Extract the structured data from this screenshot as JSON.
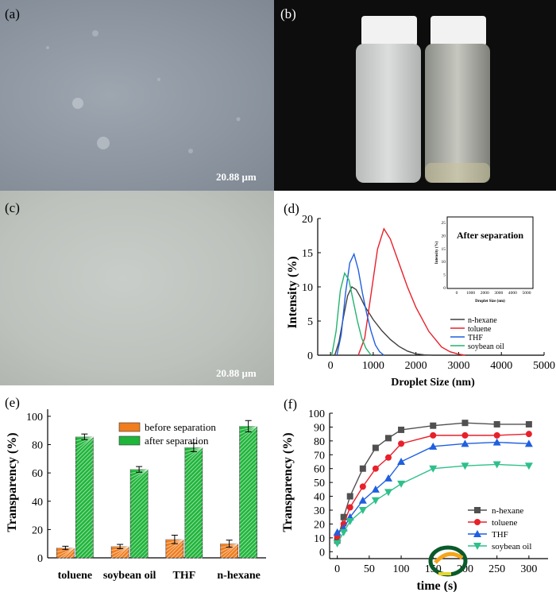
{
  "panels": {
    "a": {
      "label": "(a)",
      "scale_bar": "20.88 μm"
    },
    "b": {
      "label": "(b)"
    },
    "c": {
      "label": "(c)",
      "scale_bar": "20.88 μm"
    },
    "d": {
      "label": "(d)"
    },
    "e": {
      "label": "(e)"
    },
    "f": {
      "label": "(f)"
    }
  },
  "chart_data": [
    {
      "id": "d",
      "type": "line",
      "xlabel": "Droplet Size (nm)",
      "ylabel": "Intensity (%)",
      "xlim": [
        -300,
        5000
      ],
      "ylim": [
        0,
        20
      ],
      "xticks": [
        0,
        1000,
        2000,
        3000,
        4000,
        5000
      ],
      "yticks": [
        0,
        5,
        10,
        15,
        20
      ],
      "legend_position": "bottom-right",
      "colors": {
        "n-hexane": "#404040",
        "toluene": "#e8202a",
        "THF": "#1f5fe0",
        "soybean oil": "#22b46e"
      },
      "series": [
        {
          "name": "n-hexane",
          "x": [
            100,
            200,
            300,
            400,
            500,
            600,
            700,
            800,
            1000,
            1200,
            1400,
            1600,
            1800,
            2000,
            2200,
            2400
          ],
          "y": [
            0,
            2.0,
            5.5,
            8.7,
            10.0,
            9.6,
            8.5,
            7.2,
            5.2,
            3.6,
            2.3,
            1.3,
            0.6,
            0.2,
            0.05,
            0
          ]
        },
        {
          "name": "toluene",
          "x": [
            650,
            800,
            950,
            1100,
            1250,
            1400,
            1600,
            1800,
            2000,
            2300,
            2600,
            2800,
            3000,
            3150
          ],
          "y": [
            0,
            2.5,
            9.0,
            15.5,
            18.5,
            17.0,
            13.5,
            10.0,
            7.0,
            3.5,
            1.2,
            0.5,
            0.15,
            0
          ]
        },
        {
          "name": "THF",
          "x": [
            150,
            250,
            350,
            450,
            550,
            650,
            750,
            850,
            950,
            1050,
            1150,
            1250
          ],
          "y": [
            0,
            3.0,
            9.0,
            13.5,
            14.8,
            12.5,
            9.0,
            6.0,
            3.5,
            1.5,
            0.5,
            0
          ]
        },
        {
          "name": "soybean oil",
          "x": [
            30,
            130,
            230,
            330,
            430,
            530,
            630,
            730,
            830,
            950
          ],
          "y": [
            0,
            3.5,
            9.5,
            12.0,
            11.0,
            8.0,
            5.0,
            2.5,
            1.0,
            0
          ]
        }
      ],
      "inset": {
        "title": "After separation",
        "xlabel": "Droplet Size (nm)",
        "ylabel": "Intensity (%)",
        "xticks": [
          0,
          1000,
          2000,
          3000,
          4000,
          5000
        ],
        "yticks": [
          0,
          5,
          10,
          15,
          20,
          25
        ]
      }
    },
    {
      "id": "e",
      "type": "bar",
      "categories": [
        "toluene",
        "soybean oil",
        "THF",
        "n-hexane"
      ],
      "ylabel": "Transparency (%)",
      "ylim": [
        0,
        105
      ],
      "yticks": [
        0,
        20,
        40,
        60,
        80,
        100
      ],
      "legend_position": "top-left",
      "colors": {
        "before separation": "#f07d1e",
        "after separation": "#1fb53a"
      },
      "series": [
        {
          "name": "before separation",
          "values": [
            7,
            8,
            13,
            10
          ],
          "errors": [
            1.2,
            1.5,
            3.0,
            2.5
          ]
        },
        {
          "name": "after separation",
          "values": [
            85.5,
            62.5,
            78,
            93
          ],
          "errors": [
            2,
            2,
            3,
            4
          ]
        }
      ]
    },
    {
      "id": "f",
      "type": "line",
      "xlabel": "time (s)",
      "ylabel": "Transparency (%)",
      "xlim": [
        -12,
        330
      ],
      "ylim": [
        -5,
        100
      ],
      "xticks": [
        0,
        50,
        100,
        150,
        200,
        250,
        300
      ],
      "yticks": [
        0,
        10,
        20,
        30,
        40,
        50,
        60,
        70,
        80,
        90,
        100
      ],
      "legend_position": "bottom-right",
      "colors": {
        "n-hexane": "#505050",
        "toluene": "#e8202a",
        "THF": "#1f5fe0",
        "soybean oil": "#2ec08a"
      },
      "series": [
        {
          "name": "n-hexane",
          "marker": "square",
          "x": [
            0,
            10,
            20,
            40,
            60,
            80,
            100,
            150,
            200,
            250,
            300
          ],
          "y": [
            8,
            25,
            40,
            60,
            75,
            82,
            88,
            91,
            93,
            92,
            92
          ]
        },
        {
          "name": "toluene",
          "marker": "circle",
          "x": [
            0,
            10,
            20,
            40,
            60,
            80,
            100,
            150,
            200,
            250,
            300
          ],
          "y": [
            11,
            20,
            32,
            47,
            60,
            68,
            78,
            84,
            84,
            84,
            85
          ]
        },
        {
          "name": "THF",
          "marker": "triangle-up",
          "x": [
            0,
            10,
            20,
            40,
            60,
            80,
            100,
            150,
            200,
            250,
            300
          ],
          "y": [
            14,
            17,
            25,
            37,
            45,
            53,
            65,
            76,
            78,
            79,
            78
          ]
        },
        {
          "name": "soybean oil",
          "marker": "triangle-down",
          "x": [
            0,
            10,
            20,
            40,
            60,
            80,
            100,
            150,
            200,
            250,
            300
          ],
          "y": [
            6,
            14,
            22,
            30,
            37,
            43,
            49,
            60,
            62,
            63,
            62
          ]
        }
      ]
    }
  ]
}
